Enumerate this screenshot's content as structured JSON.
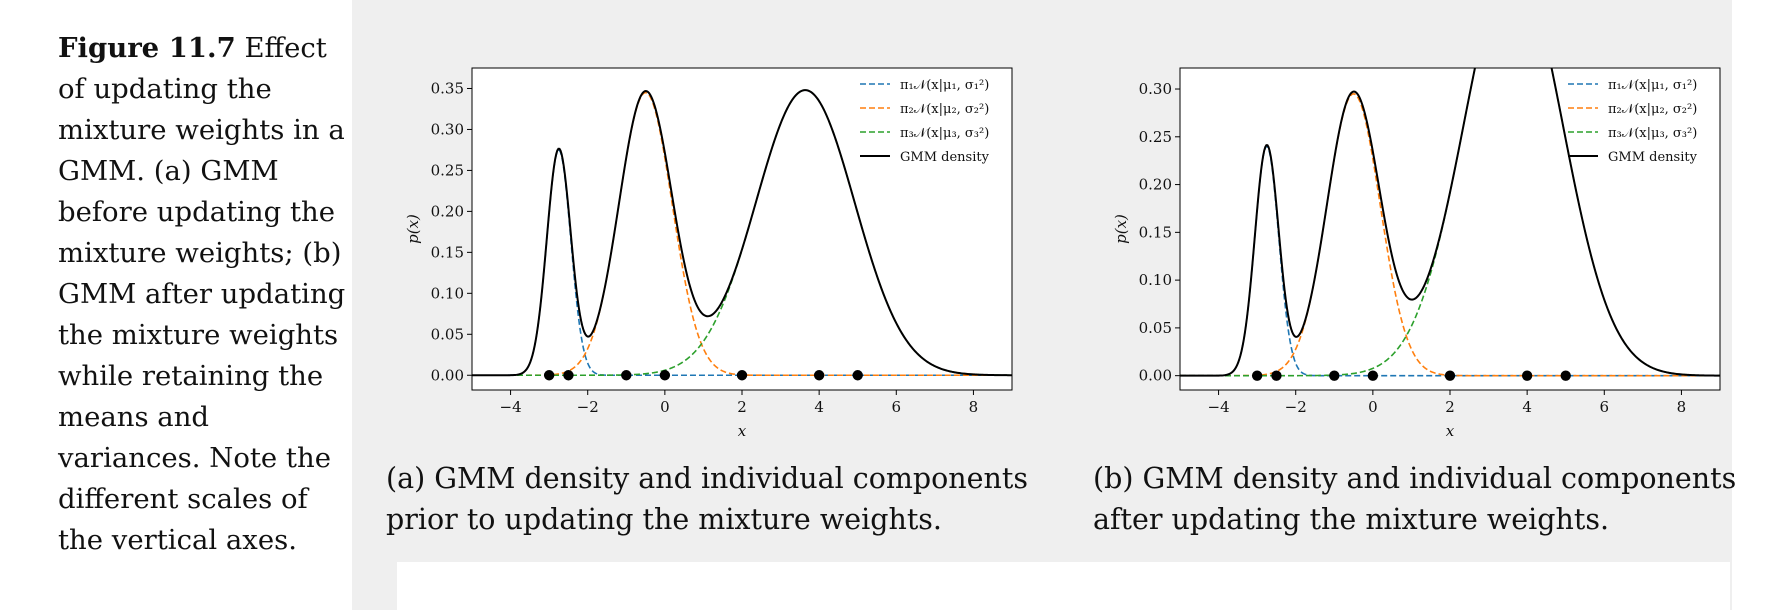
{
  "caption": {
    "label": "Figure 11.7",
    "text": " Effect of updating the mixture weights in a GMM. (a) GMM before updating the mixture weights; (b) GMM after updating the mixture weights while retaining the means and variances. Note the different scales of the vertical axes."
  },
  "subcaptions": {
    "a": "(a) GMM density and individual components prior to updating the mixture weights.",
    "b": "(b) GMM density and individual components after updating the mixture weights."
  },
  "colors": {
    "c1": "#1f77b4",
    "c2": "#ff7f0e",
    "c3": "#2ca02c",
    "gmm": "#000000",
    "points": "#000000"
  },
  "chart_data": [
    {
      "type": "line",
      "xlabel": "x",
      "ylabel": "p(x)",
      "xlim": [
        -5,
        9
      ],
      "ylim": [
        -0.018,
        0.375
      ],
      "xticks": [
        -4,
        -2,
        0,
        2,
        4,
        6,
        8
      ],
      "xtick_labels": [
        "−4",
        "−2",
        "0",
        "2",
        "4",
        "6",
        "8"
      ],
      "yticks": [
        0.0,
        0.05,
        0.1,
        0.15,
        0.2,
        0.25,
        0.3,
        0.35
      ],
      "ytick_labels": [
        "0.00",
        "0.05",
        "0.10",
        "0.15",
        "0.20",
        "0.25",
        "0.30",
        "0.35"
      ],
      "legend": [
        "π₁𝒩(x|μ₁, σ₁²)",
        "π₂𝒩(x|μ₂, σ₂²)",
        "π₃𝒩(x|μ₃, σ₃²)",
        "GMM density"
      ],
      "legend_position": "top-right",
      "grid": false,
      "components": [
        {
          "name": "π₁𝒩(x|μ₁, σ₁²)",
          "mu": -2.75,
          "sigma": 0.31,
          "weight": 0.275,
          "linestyle": "dashed"
        },
        {
          "name": "π₂𝒩(x|μ₂, σ₂²)",
          "mu": -0.5,
          "sigma": 0.69,
          "weight": 0.345,
          "linestyle": "dashed"
        },
        {
          "name": "π₃𝒩(x|μ₃, σ₃²)",
          "mu": 3.64,
          "sigma": 1.28,
          "weight": 0.348,
          "linestyle": "dashed"
        }
      ],
      "data_points": [
        -3,
        -2.5,
        -1,
        0,
        2,
        4,
        5
      ]
    },
    {
      "type": "line",
      "xlabel": "x",
      "ylabel": "p(x)",
      "xlim": [
        -5,
        9
      ],
      "ylim": [
        -0.015,
        0.322
      ],
      "xticks": [
        -4,
        -2,
        0,
        2,
        4,
        6,
        8
      ],
      "xtick_labels": [
        "−4",
        "−2",
        "0",
        "2",
        "4",
        "6",
        "8"
      ],
      "yticks": [
        0.0,
        0.05,
        0.1,
        0.15,
        0.2,
        0.25,
        0.3
      ],
      "ytick_labels": [
        "0.00",
        "0.05",
        "0.10",
        "0.15",
        "0.20",
        "0.25",
        "0.30"
      ],
      "legend": [
        "π₁𝒩(x|μ₁, σ₁²)",
        "π₂𝒩(x|μ₂, σ₂²)",
        "π₃𝒩(x|μ₃, σ₃²)",
        "GMM density"
      ],
      "legend_position": "top-right",
      "grid": false,
      "components": [
        {
          "name": "π₁𝒩(x|μ₁, σ₁²)",
          "mu": -2.75,
          "sigma": 0.31,
          "weight": 0.24,
          "linestyle": "dashed"
        },
        {
          "name": "π₂𝒩(x|μ₂, σ₂²)",
          "mu": -0.5,
          "sigma": 0.69,
          "weight": 0.295,
          "linestyle": "dashed"
        },
        {
          "name": "π₃𝒩(x|μ₃, σ₃²)",
          "mu": 3.64,
          "sigma": 1.28,
          "weight": 0.435,
          "linestyle": "dashed"
        }
      ],
      "data_points": [
        -3,
        -2.5,
        -1,
        0,
        2,
        4,
        5
      ]
    }
  ]
}
